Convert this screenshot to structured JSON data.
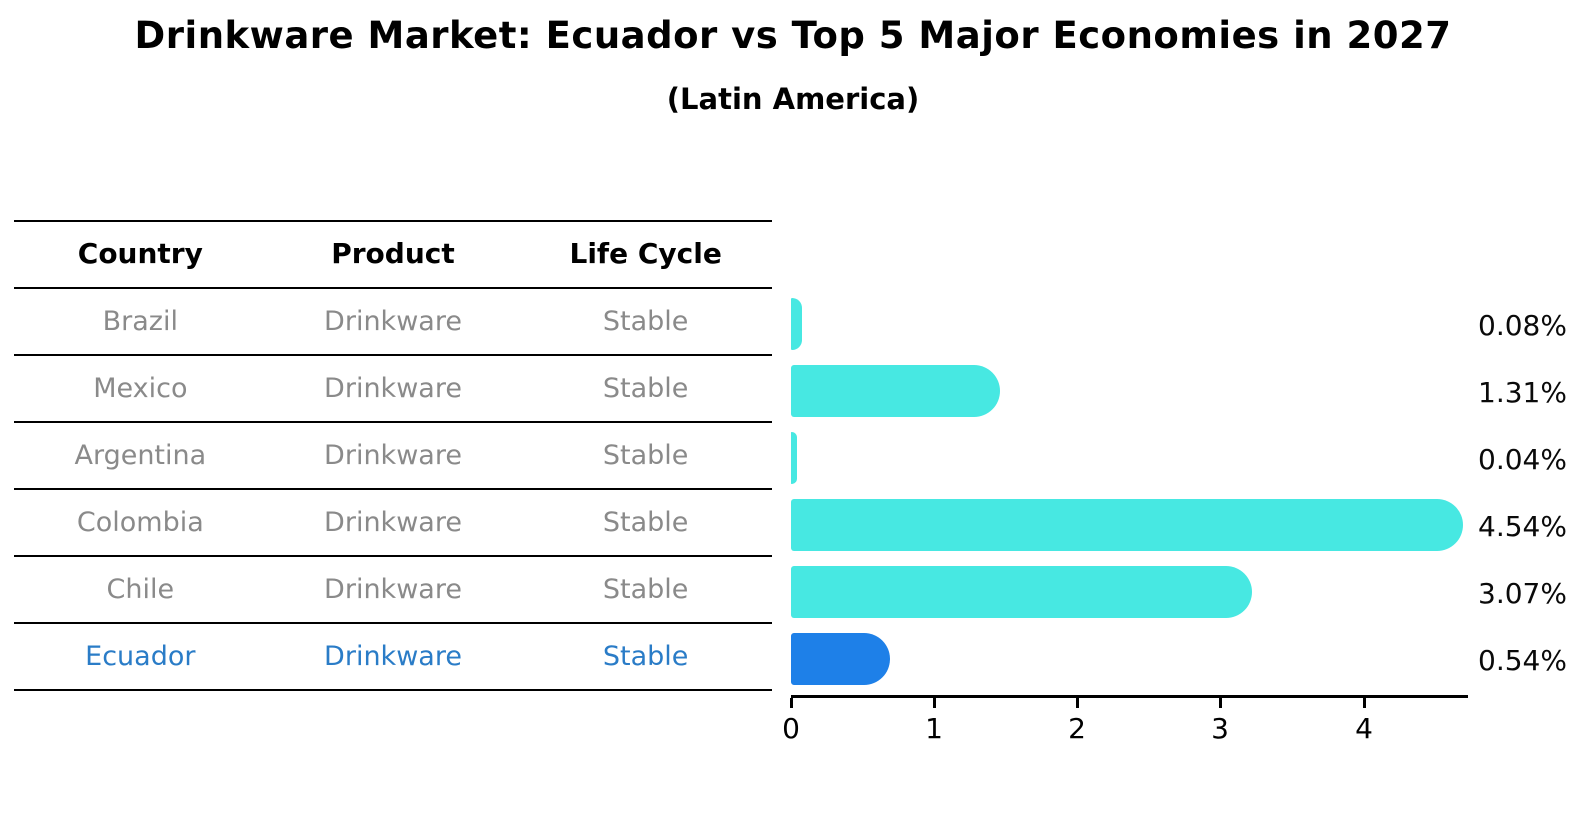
{
  "title": "Drinkware Market: Ecuador vs Top 5 Major Economies in 2027",
  "subtitle": "(Latin America)",
  "table": {
    "headers": [
      "Country",
      "Product",
      "Life Cycle"
    ],
    "rows": [
      {
        "country": "Brazil",
        "product": "Drinkware",
        "life_cycle": "Stable",
        "highlight": false
      },
      {
        "country": "Mexico",
        "product": "Drinkware",
        "life_cycle": "Stable",
        "highlight": false
      },
      {
        "country": "Argentina",
        "product": "Drinkware",
        "life_cycle": "Stable",
        "highlight": false
      },
      {
        "country": "Colombia",
        "product": "Drinkware",
        "life_cycle": "Stable",
        "highlight": false
      },
      {
        "country": "Chile",
        "product": "Drinkware",
        "life_cycle": "Stable",
        "highlight": false
      },
      {
        "country": "Ecuador",
        "product": "Drinkware",
        "life_cycle": "Stable",
        "highlight": true
      }
    ]
  },
  "chart_data": {
    "type": "bar",
    "orientation": "horizontal",
    "title": "Drinkware Market: Ecuador vs Top 5 Major Economies in 2027",
    "subtitle": "(Latin America)",
    "categories": [
      "Brazil",
      "Mexico",
      "Argentina",
      "Colombia",
      "Chile",
      "Ecuador"
    ],
    "values": [
      0.08,
      1.31,
      0.04,
      4.54,
      3.07,
      0.54
    ],
    "value_labels": [
      "0.08%",
      "1.31%",
      "0.04%",
      "4.54%",
      "3.07%",
      "0.54%"
    ],
    "unit": "%",
    "xlabel": "",
    "ylabel": "",
    "xlim": [
      0,
      4.73
    ],
    "x_ticks": [
      0,
      1,
      2,
      3,
      4
    ],
    "x_tick_labels": [
      "0",
      "1",
      "2",
      "3",
      "4"
    ],
    "grid": false,
    "legend": "none",
    "highlight_index": 5,
    "bar_color": "#47E8E2",
    "highlight_bar_color": "#1E80E8"
  },
  "colors": {
    "background": "#ffffff",
    "title_text": "#000000",
    "table_line": "#000000",
    "table_header_text": "#000000",
    "table_body_text": "#8a8a8a",
    "highlight_text": "#2A7CC7",
    "bar_color": "#47E8E2",
    "highlight_bar_color": "#1E80E8",
    "axis_line": "#000000",
    "value_label_text": "#0a0a0a"
  }
}
